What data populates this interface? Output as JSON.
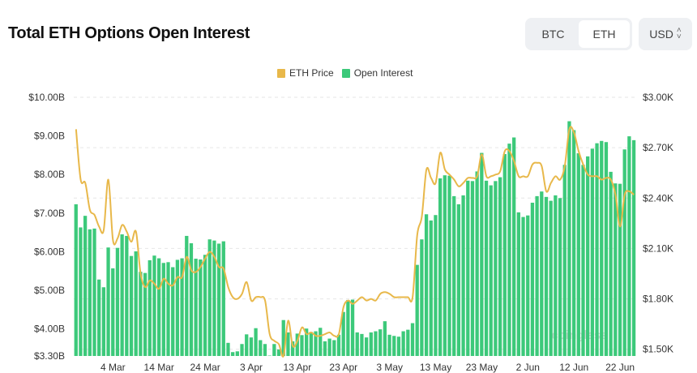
{
  "header": {
    "title": "Total ETH Options Open Interest",
    "coin_options": [
      "BTC",
      "ETH"
    ],
    "selected_coin": "ETH",
    "currency": "USD"
  },
  "colors": {
    "price": "#e8b84a",
    "oi": "#3cc97a",
    "grid": "#e6e6e6"
  },
  "watermark": "coinglass",
  "chart_data": {
    "type": "bar+line",
    "title": "Total ETH Options Open Interest",
    "legend": [
      "ETH Price",
      "Open Interest"
    ],
    "legend_position": "top-center",
    "start_date": "2024-02-25",
    "x_ticks": [
      {
        "index": 8,
        "label": "4 Mar"
      },
      {
        "index": 18,
        "label": "14 Mar"
      },
      {
        "index": 28,
        "label": "24 Mar"
      },
      {
        "index": 38,
        "label": "3 Apr"
      },
      {
        "index": 48,
        "label": "13 Apr"
      },
      {
        "index": 58,
        "label": "23 Apr"
      },
      {
        "index": 68,
        "label": "3 May"
      },
      {
        "index": 78,
        "label": "13 May"
      },
      {
        "index": 88,
        "label": "23 May"
      },
      {
        "index": 98,
        "label": "2 Jun"
      },
      {
        "index": 108,
        "label": "12 Jun"
      },
      {
        "index": 118,
        "label": "22 Jun"
      }
    ],
    "left_axis": {
      "ylim": [
        3.3,
        10.0
      ],
      "unit": "B USD",
      "ticks": [
        {
          "v": 10,
          "label": "$10.00B"
        },
        {
          "v": 9,
          "label": "$9.00B"
        },
        {
          "v": 8,
          "label": "$8.00B"
        },
        {
          "v": 7,
          "label": "$7.00B"
        },
        {
          "v": 6,
          "label": "$6.00B"
        },
        {
          "v": 5,
          "label": "$5.00B"
        },
        {
          "v": 4,
          "label": "$4.00B"
        },
        {
          "v": 3.3,
          "label": "$3.30B"
        }
      ]
    },
    "right_axis": {
      "ylim": [
        1.46,
        3.0
      ],
      "unit": "K USD",
      "ticks": [
        {
          "v": 3.0,
          "label": "$3.00K"
        },
        {
          "v": 2.7,
          "label": "$2.70K"
        },
        {
          "v": 2.4,
          "label": "$2.40K"
        },
        {
          "v": 2.1,
          "label": "$2.10K"
        },
        {
          "v": 1.8,
          "label": "$1.80K"
        },
        {
          "v": 1.5,
          "label": "$1.50K"
        }
      ]
    },
    "grid": true,
    "series": [
      {
        "name": "Open Interest",
        "type": "bar",
        "axis": "left",
        "values": [
          7.23,
          6.63,
          6.93,
          6.58,
          6.6,
          5.28,
          5.08,
          6.11,
          5.57,
          6.1,
          6.45,
          6.41,
          5.89,
          6.01,
          5.48,
          5.45,
          5.78,
          5.9,
          5.83,
          5.71,
          5.73,
          5.6,
          5.79,
          5.83,
          6.41,
          6.22,
          5.82,
          5.8,
          5.92,
          6.32,
          6.29,
          6.21,
          6.27,
          3.64,
          3.4,
          3.42,
          3.61,
          3.86,
          3.78,
          4.02,
          3.71,
          3.61,
          3.31,
          3.61,
          3.47,
          4.23,
          3.91,
          3.68,
          3.88,
          3.84,
          4.01,
          3.92,
          3.94,
          4.03,
          3.68,
          3.75,
          3.71,
          3.85,
          4.44,
          4.75,
          4.76,
          3.91,
          3.87,
          3.78,
          3.91,
          3.94,
          3.99,
          4.2,
          3.85,
          3.82,
          3.8,
          3.94,
          3.98,
          4.15,
          5.66,
          6.32,
          6.97,
          6.81,
          6.95,
          7.9,
          7.98,
          7.97,
          7.44,
          7.23,
          7.46,
          7.84,
          7.83,
          8.08,
          8.56,
          7.84,
          7.72,
          7.83,
          7.93,
          8.53,
          8.8,
          8.96,
          7.02,
          6.9,
          6.94,
          7.27,
          7.44,
          7.56,
          7.42,
          7.32,
          7.46,
          7.39,
          8.25,
          9.38,
          9.15,
          8.55,
          8.25,
          8.47,
          8.67,
          8.81,
          8.87,
          8.84,
          8.07,
          7.77,
          7.76,
          8.65,
          8.99,
          8.89
        ]
      },
      {
        "name": "ETH Price",
        "type": "line",
        "axis": "right",
        "values": [
          2.81,
          2.51,
          2.49,
          2.33,
          2.3,
          2.23,
          2.21,
          2.51,
          2.15,
          2.16,
          2.24,
          2.2,
          2.14,
          2.2,
          1.95,
          1.87,
          1.91,
          1.89,
          1.86,
          1.92,
          1.89,
          1.88,
          1.93,
          1.93,
          2.05,
          1.97,
          1.96,
          1.99,
          2.04,
          2.08,
          2.05,
          1.99,
          1.98,
          1.87,
          1.81,
          1.8,
          1.83,
          1.9,
          1.79,
          1.81,
          1.81,
          1.79,
          1.59,
          1.55,
          1.53,
          1.46,
          1.67,
          1.52,
          1.55,
          1.63,
          1.59,
          1.6,
          1.58,
          1.58,
          1.59,
          1.6,
          1.58,
          1.59,
          1.75,
          1.79,
          1.77,
          1.79,
          1.81,
          1.79,
          1.8,
          1.79,
          1.83,
          1.84,
          1.83,
          1.81,
          1.81,
          1.81,
          1.81,
          1.81,
          2.18,
          2.29,
          2.57,
          2.52,
          2.49,
          2.67,
          2.57,
          2.54,
          2.51,
          2.47,
          2.49,
          2.52,
          2.52,
          2.53,
          2.66,
          2.53,
          2.53,
          2.54,
          2.56,
          2.68,
          2.68,
          2.62,
          2.53,
          2.53,
          2.53,
          2.6,
          2.61,
          2.59,
          2.44,
          2.49,
          2.53,
          2.51,
          2.59,
          2.81,
          2.79,
          2.68,
          2.6,
          2.54,
          2.53,
          2.53,
          2.51,
          2.52,
          2.51,
          2.42,
          2.23,
          2.42,
          2.44,
          2.42
        ]
      }
    ]
  }
}
